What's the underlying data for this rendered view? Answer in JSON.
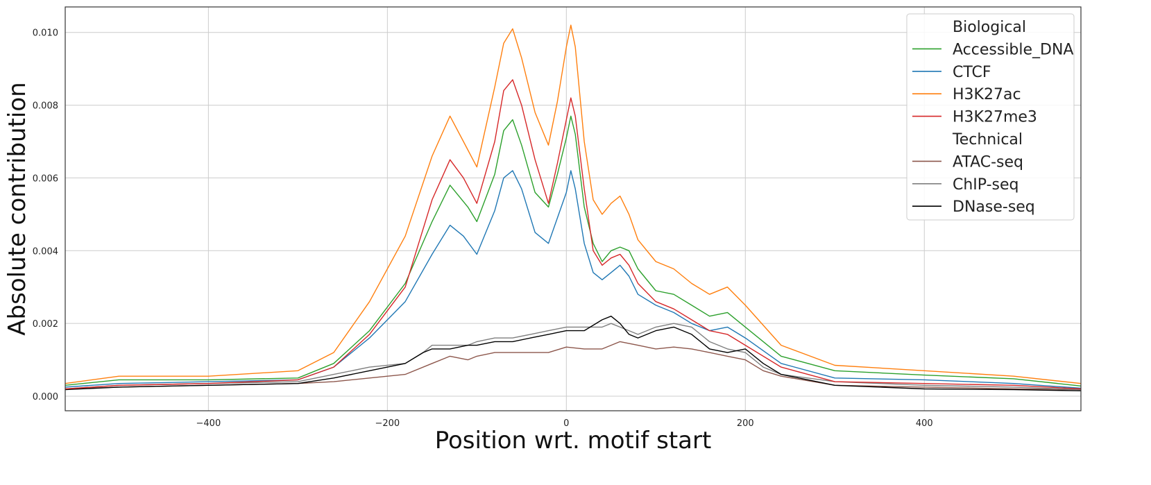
{
  "chart_data": {
    "type": "line",
    "title": "",
    "xlabel": "Position wrt. motif start",
    "ylabel": "Absolute contribution",
    "xlim": [
      -560,
      575
    ],
    "ylim": [
      -0.0004,
      0.0107
    ],
    "xticks": [
      -400,
      -200,
      0,
      200,
      400
    ],
    "xtick_labels": [
      "−400",
      "−200",
      "0",
      "200",
      "400"
    ],
    "yticks": [
      0.0,
      0.002,
      0.004,
      0.006,
      0.008,
      0.01
    ],
    "ytick_labels": [
      "0.000",
      "0.002",
      "0.004",
      "0.006",
      "0.008",
      "0.010"
    ],
    "grid": true,
    "legend_position": "top-right",
    "legend_groups": [
      {
        "title": "Biological",
        "series": [
          "Accessible_DNA",
          "CTCF",
          "H3K27ac",
          "H3K27me3"
        ]
      },
      {
        "title": "Technical",
        "series": [
          "ATAC-seq",
          "ChIP-seq",
          "DNase-seq"
        ]
      }
    ],
    "series": [
      {
        "name": "Accessible_DNA",
        "color": "#2ca02c",
        "x": [
          -560,
          -500,
          -400,
          -300,
          -260,
          -220,
          -180,
          -150,
          -130,
          -110,
          -100,
          -80,
          -70,
          -60,
          -50,
          -35,
          -20,
          -10,
          0,
          5,
          10,
          20,
          30,
          40,
          50,
          60,
          70,
          80,
          100,
          120,
          140,
          160,
          180,
          200,
          240,
          300,
          400,
          500,
          575
        ],
        "y": [
          0.0003,
          0.00045,
          0.00045,
          0.0005,
          0.0009,
          0.0018,
          0.0031,
          0.0048,
          0.0058,
          0.0052,
          0.0048,
          0.0061,
          0.0073,
          0.0076,
          0.0069,
          0.0056,
          0.0052,
          0.0061,
          0.0071,
          0.0077,
          0.0072,
          0.0052,
          0.0042,
          0.0037,
          0.004,
          0.0041,
          0.004,
          0.0035,
          0.0029,
          0.0028,
          0.0025,
          0.0022,
          0.0023,
          0.0019,
          0.0011,
          0.0007,
          0.00058,
          0.00048,
          0.00028
        ]
      },
      {
        "name": "CTCF",
        "color": "#1f77b4",
        "x": [
          -560,
          -500,
          -400,
          -300,
          -260,
          -220,
          -180,
          -150,
          -130,
          -115,
          -100,
          -80,
          -70,
          -60,
          -50,
          -35,
          -20,
          -10,
          0,
          5,
          10,
          20,
          30,
          40,
          50,
          60,
          70,
          80,
          100,
          120,
          140,
          160,
          180,
          200,
          240,
          300,
          400,
          500,
          575
        ],
        "y": [
          0.00025,
          0.00035,
          0.0004,
          0.00045,
          0.0008,
          0.0016,
          0.0026,
          0.0039,
          0.0047,
          0.0044,
          0.0039,
          0.0051,
          0.006,
          0.0062,
          0.0057,
          0.0045,
          0.0042,
          0.0049,
          0.0056,
          0.0062,
          0.0057,
          0.0042,
          0.0034,
          0.0032,
          0.0034,
          0.0036,
          0.0033,
          0.0028,
          0.0025,
          0.0023,
          0.002,
          0.0018,
          0.0019,
          0.0016,
          0.0009,
          0.0005,
          0.00045,
          0.00035,
          0.00022
        ]
      },
      {
        "name": "H3K27ac",
        "color": "#ff7f0e",
        "x": [
          -560,
          -500,
          -400,
          -300,
          -260,
          -220,
          -180,
          -150,
          -130,
          -115,
          -100,
          -80,
          -70,
          -60,
          -50,
          -35,
          -20,
          -10,
          0,
          5,
          10,
          20,
          30,
          40,
          50,
          60,
          70,
          80,
          100,
          120,
          140,
          160,
          180,
          200,
          240,
          300,
          400,
          500,
          575
        ],
        "y": [
          0.00035,
          0.00055,
          0.00055,
          0.0007,
          0.0012,
          0.0026,
          0.0044,
          0.0066,
          0.0077,
          0.007,
          0.0063,
          0.0085,
          0.0097,
          0.0101,
          0.0093,
          0.0078,
          0.0069,
          0.0081,
          0.0096,
          0.0102,
          0.0096,
          0.007,
          0.0054,
          0.005,
          0.0053,
          0.0055,
          0.005,
          0.0043,
          0.0037,
          0.0035,
          0.0031,
          0.0028,
          0.003,
          0.0025,
          0.0014,
          0.00085,
          0.0007,
          0.00055,
          0.00035
        ]
      },
      {
        "name": "H3K27me3",
        "color": "#d62728",
        "x": [
          -560,
          -500,
          -400,
          -300,
          -260,
          -220,
          -180,
          -150,
          -130,
          -115,
          -100,
          -80,
          -70,
          -60,
          -50,
          -35,
          -20,
          -10,
          0,
          5,
          10,
          20,
          30,
          40,
          50,
          60,
          70,
          80,
          100,
          120,
          140,
          160,
          180,
          200,
          240,
          300,
          400,
          500,
          575
        ],
        "y": [
          0.0002,
          0.0003,
          0.00035,
          0.00045,
          0.0008,
          0.0017,
          0.003,
          0.0054,
          0.0065,
          0.006,
          0.0053,
          0.007,
          0.0084,
          0.0087,
          0.008,
          0.0065,
          0.0053,
          0.0064,
          0.0076,
          0.0082,
          0.0077,
          0.0057,
          0.004,
          0.0036,
          0.0038,
          0.0039,
          0.0036,
          0.0031,
          0.0026,
          0.0024,
          0.0021,
          0.0018,
          0.0017,
          0.0014,
          0.0008,
          0.0004,
          0.00035,
          0.0003,
          0.0002
        ]
      },
      {
        "name": "ATAC-seq",
        "color": "#8c564b",
        "x": [
          -560,
          -500,
          -400,
          -300,
          -260,
          -220,
          -180,
          -150,
          -130,
          -110,
          -100,
          -80,
          -60,
          -40,
          -20,
          0,
          20,
          40,
          50,
          60,
          80,
          100,
          120,
          140,
          160,
          180,
          200,
          220,
          240,
          300,
          400,
          500,
          575
        ],
        "y": [
          0.0002,
          0.00025,
          0.0003,
          0.00035,
          0.0004,
          0.0005,
          0.0006,
          0.0009,
          0.0011,
          0.001,
          0.0011,
          0.0012,
          0.0012,
          0.0012,
          0.0012,
          0.00135,
          0.0013,
          0.0013,
          0.0014,
          0.0015,
          0.0014,
          0.0013,
          0.00135,
          0.0013,
          0.0012,
          0.0011,
          0.001,
          0.0007,
          0.00055,
          0.0003,
          0.00025,
          0.0002,
          0.00018
        ]
      },
      {
        "name": "ChIP-seq",
        "color": "#7f7f7f",
        "x": [
          -560,
          -500,
          -400,
          -300,
          -260,
          -220,
          -180,
          -160,
          -150,
          -130,
          -110,
          -100,
          -80,
          -60,
          -40,
          -20,
          0,
          20,
          40,
          50,
          60,
          80,
          100,
          120,
          140,
          160,
          180,
          200,
          220,
          240,
          300,
          400,
          500,
          575
        ],
        "y": [
          0.0002,
          0.0003,
          0.00035,
          0.0004,
          0.0006,
          0.0008,
          0.0009,
          0.0012,
          0.0014,
          0.0014,
          0.0014,
          0.0015,
          0.0016,
          0.0016,
          0.0017,
          0.0018,
          0.0019,
          0.0019,
          0.0019,
          0.002,
          0.0019,
          0.0017,
          0.0019,
          0.002,
          0.0019,
          0.0015,
          0.0013,
          0.0012,
          0.0008,
          0.0006,
          0.0004,
          0.0003,
          0.00025,
          0.00018
        ]
      },
      {
        "name": "DNase-seq",
        "color": "#000000",
        "x": [
          -560,
          -500,
          -400,
          -300,
          -260,
          -220,
          -180,
          -160,
          -150,
          -130,
          -110,
          -100,
          -80,
          -60,
          -40,
          -20,
          0,
          20,
          40,
          50,
          60,
          70,
          80,
          100,
          120,
          140,
          160,
          180,
          200,
          220,
          240,
          300,
          400,
          500,
          575
        ],
        "y": [
          0.00018,
          0.00025,
          0.0003,
          0.00035,
          0.0005,
          0.0007,
          0.0009,
          0.0012,
          0.0013,
          0.0013,
          0.0014,
          0.0014,
          0.0015,
          0.0015,
          0.0016,
          0.0017,
          0.0018,
          0.0018,
          0.0021,
          0.0022,
          0.002,
          0.0017,
          0.0016,
          0.0018,
          0.0019,
          0.0017,
          0.0013,
          0.0012,
          0.0013,
          0.0009,
          0.0006,
          0.0003,
          0.0002,
          0.00018,
          0.00015
        ]
      }
    ]
  }
}
